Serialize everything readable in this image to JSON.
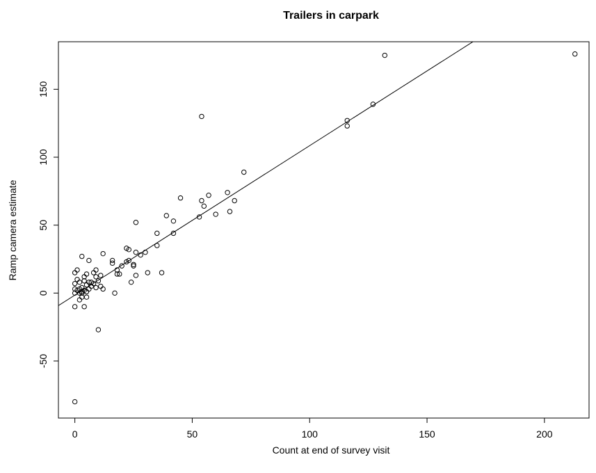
{
  "chart_data": {
    "type": "scatter",
    "title": "Trailers in carpark",
    "xlabel": "Count at end of survey visit",
    "ylabel": "Ramp camera estimate",
    "xlim": [
      -7,
      219
    ],
    "ylim": [
      -92,
      185
    ],
    "x_ticks": [
      0,
      50,
      100,
      150,
      200
    ],
    "y_ticks": [
      -50,
      0,
      50,
      100,
      150
    ],
    "grid": false,
    "legend": "none",
    "fit_line": {
      "intercept": -1.5,
      "slope": 1.1
    },
    "points": [
      [
        0,
        -80
      ],
      [
        0,
        -10
      ],
      [
        0,
        0
      ],
      [
        0,
        3
      ],
      [
        0,
        7
      ],
      [
        0,
        15
      ],
      [
        1,
        2
      ],
      [
        1,
        10
      ],
      [
        1,
        17
      ],
      [
        2,
        0
      ],
      [
        2,
        3
      ],
      [
        2,
        8
      ],
      [
        2,
        -5
      ],
      [
        3,
        -3
      ],
      [
        3,
        1
      ],
      [
        3,
        4
      ],
      [
        3,
        27
      ],
      [
        3,
        0
      ],
      [
        4,
        9
      ],
      [
        4,
        12
      ],
      [
        4,
        -10
      ],
      [
        4,
        2
      ],
      [
        5,
        6
      ],
      [
        5,
        14
      ],
      [
        5,
        -3
      ],
      [
        5,
        1
      ],
      [
        6,
        3
      ],
      [
        6,
        24
      ],
      [
        6,
        8
      ],
      [
        7,
        5
      ],
      [
        7,
        8
      ],
      [
        8,
        15
      ],
      [
        8,
        7
      ],
      [
        9,
        12
      ],
      [
        9,
        17
      ],
      [
        9,
        4
      ],
      [
        10,
        9
      ],
      [
        10,
        -27
      ],
      [
        11,
        13
      ],
      [
        11,
        5
      ],
      [
        12,
        29
      ],
      [
        12,
        3
      ],
      [
        16,
        22
      ],
      [
        16,
        24
      ],
      [
        17,
        0
      ],
      [
        18,
        14
      ],
      [
        18,
        17
      ],
      [
        19,
        14
      ],
      [
        20,
        20
      ],
      [
        22,
        33
      ],
      [
        22,
        23
      ],
      [
        23,
        24
      ],
      [
        23,
        32
      ],
      [
        24,
        8
      ],
      [
        25,
        20
      ],
      [
        25,
        21
      ],
      [
        26,
        13
      ],
      [
        26,
        30
      ],
      [
        26,
        52
      ],
      [
        28,
        28
      ],
      [
        30,
        30
      ],
      [
        31,
        15
      ],
      [
        35,
        35
      ],
      [
        35,
        44
      ],
      [
        37,
        15
      ],
      [
        39,
        57
      ],
      [
        42,
        53
      ],
      [
        42,
        44
      ],
      [
        45,
        70
      ],
      [
        53,
        56
      ],
      [
        54,
        130
      ],
      [
        54,
        68
      ],
      [
        55,
        64
      ],
      [
        57,
        72
      ],
      [
        60,
        58
      ],
      [
        65,
        74
      ],
      [
        66,
        60
      ],
      [
        68,
        68
      ],
      [
        72,
        89
      ],
      [
        116,
        127
      ],
      [
        116,
        123
      ],
      [
        127,
        139
      ],
      [
        132,
        175
      ],
      [
        213,
        176
      ]
    ]
  }
}
